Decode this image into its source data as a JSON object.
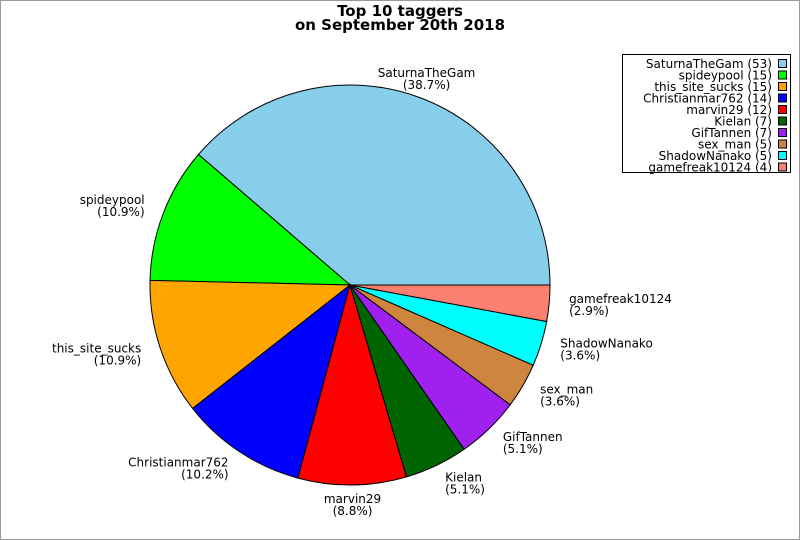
{
  "chart_data": {
    "type": "pie",
    "title": "Top 10 taggers",
    "subtitle": "on September 20th 2018",
    "categories": [
      "SaturnaTheGam",
      "spideypool",
      "this_site_sucks",
      "Christianmar762",
      "marvin29",
      "Kielan",
      "GifTannen",
      "sex_man",
      "ShadowNanako",
      "gamefreak10124"
    ],
    "values": [
      53,
      15,
      15,
      14,
      12,
      7,
      7,
      5,
      5,
      4
    ],
    "value_labels": [
      "(38.7%)",
      "(10.9%)",
      "(10.9%)",
      "(10.2%)",
      "(8.8%)",
      "(5.1%)",
      "(5.1%)",
      "(3.6%)",
      "(3.6%)",
      "(2.9%)"
    ],
    "legend_labels": [
      "SaturnaTheGam (53)",
      "spideypool (15)",
      "this_site_sucks (15)",
      "Christianmar762 (14)",
      "marvin29 (12)",
      "Kielan (7)",
      "GifTannen (7)",
      "sex_man (5)",
      "ShadowNanako (5)",
      "gamefreak10124 (4)"
    ],
    "colors": [
      "#87ceeb",
      "#00ff00",
      "#ffa500",
      "#0000ff",
      "#ff0000",
      "#006400",
      "#a020f0",
      "#cd853f",
      "#00ffff",
      "#fa8072"
    ],
    "legend": "upper right"
  }
}
